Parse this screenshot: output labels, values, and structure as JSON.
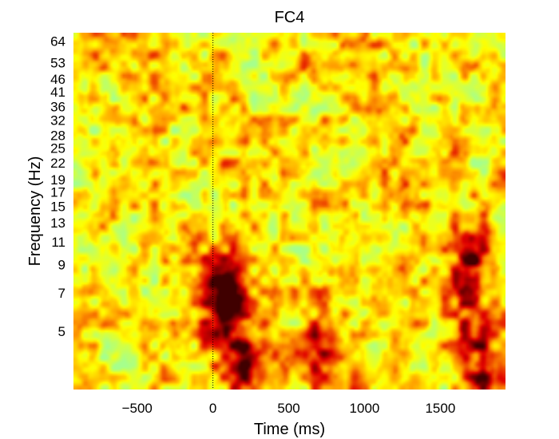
{
  "chart_data": {
    "type": "heatmap",
    "title": "FC4",
    "xlabel": "Time (ms)",
    "ylabel": "Frequency (Hz)",
    "xlim": [
      -920,
      1930
    ],
    "ylim": [
      3,
      69
    ],
    "y_scale": "log",
    "colormap": "hot (yellow-green low → red/black high)",
    "event_marker": {
      "x": 0,
      "style": "dotted"
    },
    "x_ticks": [
      {
        "value": -500,
        "label": "−500"
      },
      {
        "value": 0,
        "label": "0"
      },
      {
        "value": 500,
        "label": "500"
      },
      {
        "value": 1000,
        "label": "1000"
      },
      {
        "value": 1500,
        "label": "1500"
      }
    ],
    "y_ticks": [
      {
        "value": 5,
        "label": "5"
      },
      {
        "value": 7,
        "label": "7"
      },
      {
        "value": 9,
        "label": "9"
      },
      {
        "value": 11,
        "label": "11"
      },
      {
        "value": 13,
        "label": "13"
      },
      {
        "value": 15,
        "label": "15"
      },
      {
        "value": 17,
        "label": "17"
      },
      {
        "value": 19,
        "label": "19"
      },
      {
        "value": 22,
        "label": "22"
      },
      {
        "value": 25,
        "label": "25"
      },
      {
        "value": 28,
        "label": "28"
      },
      {
        "value": 32,
        "label": "32"
      },
      {
        "value": 36,
        "label": "36"
      },
      {
        "value": 41,
        "label": "41"
      },
      {
        "value": 46,
        "label": "46"
      },
      {
        "value": 53,
        "label": "53"
      },
      {
        "value": 64,
        "label": "64"
      }
    ],
    "hotspots": [
      {
        "time_ms": 80,
        "freq_hz": 6.8,
        "intensity": 1.0
      },
      {
        "time_ms": 200,
        "freq_hz": 3.8,
        "intensity": 0.7
      },
      {
        "time_ms": 700,
        "freq_hz": 4.2,
        "intensity": 0.62
      },
      {
        "time_ms": 1700,
        "freq_hz": 8.2,
        "intensity": 0.75
      },
      {
        "time_ms": 1750,
        "freq_hz": 3.8,
        "intensity": 0.75
      }
    ]
  },
  "colors": {
    "low": "#a6ff8c",
    "mid": "#ffff00",
    "high": "#e00000",
    "peak": "#400000",
    "event_marker": "#000000"
  }
}
